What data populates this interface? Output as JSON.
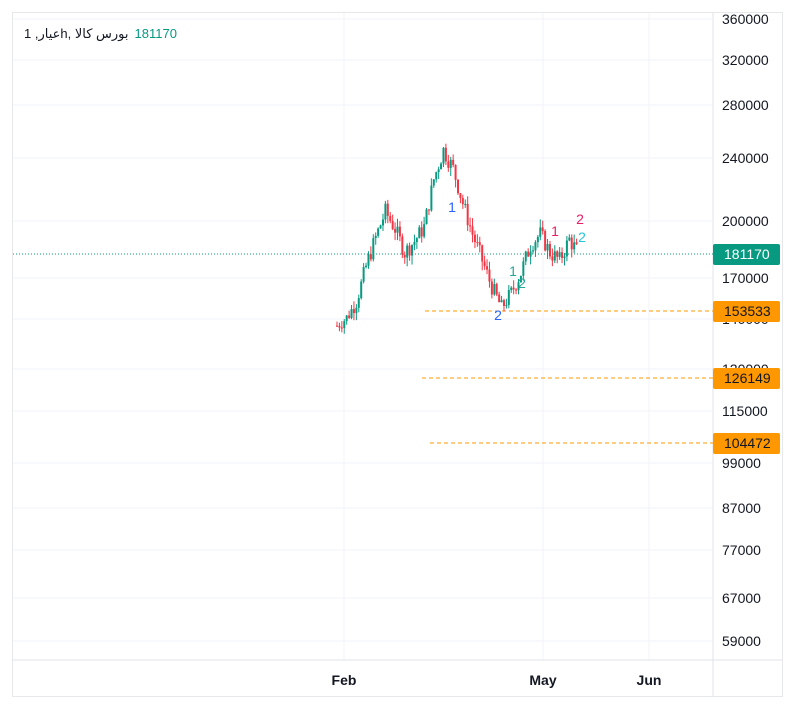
{
  "legend": {
    "symbol": "عیار, 1h, بورس کالا",
    "last_value": "181170"
  },
  "colors": {
    "up": "#089981",
    "down": "#f23645",
    "level": "#ff9800",
    "grid": "#f0f3fa",
    "last": "#089981"
  },
  "chart_data": {
    "type": "candlestick",
    "y_scale": "log",
    "y_ticks": [
      360000,
      320000,
      280000,
      240000,
      200000,
      170000,
      140000,
      120000,
      115000,
      99000,
      87000,
      77000,
      67000,
      59000
    ],
    "x_ticks": [
      "Feb",
      "May",
      "Jun"
    ],
    "last_price": 181170,
    "price_levels": [
      153533,
      126149,
      104472
    ],
    "price_path": [
      {
        "x": "late Jan",
        "y": 146000
      },
      {
        "x": "late Jan",
        "y": 150000
      },
      {
        "x": "late Jan",
        "y": 158000
      },
      {
        "x": "early Feb",
        "y": 175000
      },
      {
        "x": "early Feb",
        "y": 190000
      },
      {
        "x": "early Feb",
        "y": 205000
      },
      {
        "x": "early Feb",
        "y": 195000
      },
      {
        "x": "mid Feb",
        "y": 182000
      },
      {
        "x": "mid Feb",
        "y": 188000
      },
      {
        "x": "mid Feb",
        "y": 196000
      },
      {
        "x": "late Feb",
        "y": 225000
      },
      {
        "x": "late Feb",
        "y": 245000
      },
      {
        "x": "early Mar",
        "y": 232000
      },
      {
        "x": "early Mar",
        "y": 210000
      },
      {
        "x": "mid Mar",
        "y": 192000
      },
      {
        "x": "mid Mar",
        "y": 178000
      },
      {
        "x": "late Mar",
        "y": 165000
      },
      {
        "x": "late Mar",
        "y": 155000
      },
      {
        "x": "early Apr",
        "y": 162000
      },
      {
        "x": "mid Apr",
        "y": 172000
      },
      {
        "x": "late Apr",
        "y": 186000
      },
      {
        "x": "early May",
        "y": 192000
      },
      {
        "x": "early May",
        "y": 182000
      },
      {
        "x": "mid May",
        "y": 178000
      },
      {
        "x": "mid May",
        "y": 189000
      },
      {
        "x": "mid May",
        "y": 181170
      }
    ],
    "wave_labels": [
      {
        "text": "1",
        "color": "#2962ff"
      },
      {
        "text": "2",
        "color": "#2962ff"
      },
      {
        "text": "1",
        "color": "#26a69a"
      },
      {
        "text": "2",
        "color": "#26a69a"
      },
      {
        "text": "1",
        "color": "#e91e63"
      },
      {
        "text": "2",
        "color": "#e91e63"
      }
    ]
  }
}
